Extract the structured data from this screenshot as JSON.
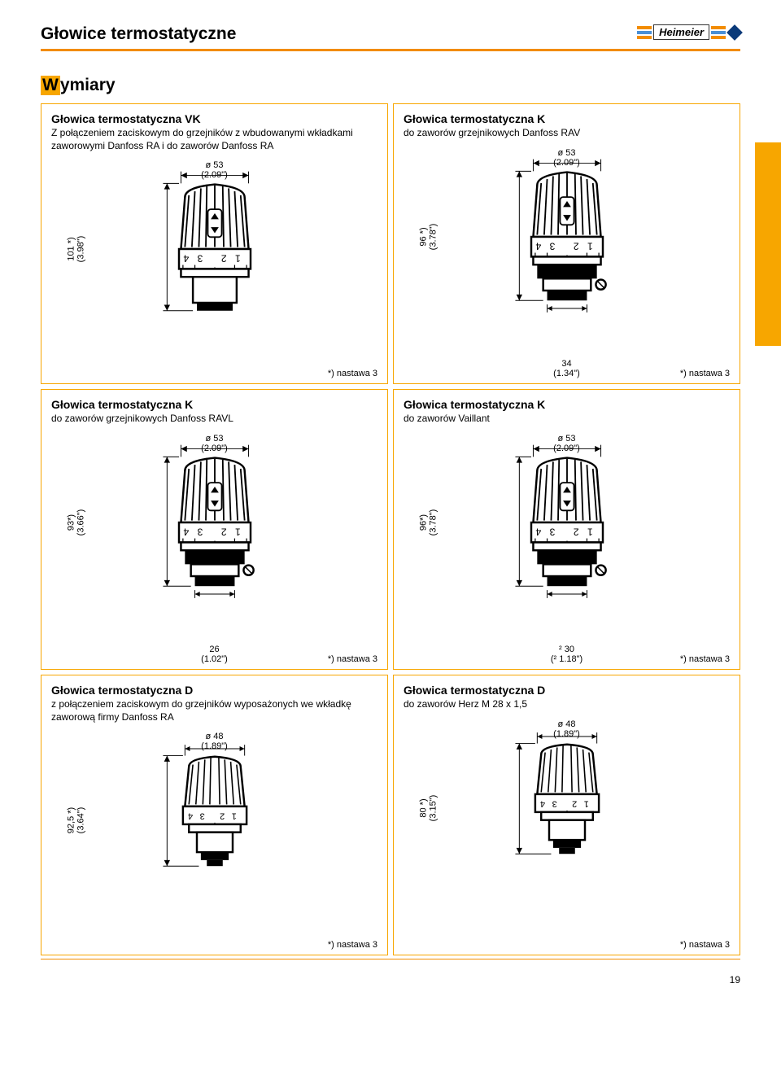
{
  "page": {
    "title": "Głowice termostatyczne",
    "section_letter": "W",
    "section_rest": "ymiary",
    "page_num": "19"
  },
  "logo": {
    "brand": "Heimeier",
    "bar_colors": [
      "#f28c00",
      "#4a8fd6",
      "#f28c00"
    ]
  },
  "note_text": "*) nastawa 3",
  "cards": [
    {
      "title": "Głowica termostatyczna VK",
      "sub": "Z połączeniem zaciskowym do grzejników z wbudowanymi wkładkami zaworowymi Danfoss RA\ni do zaworów Danfoss RA",
      "top_dim": "ø 53",
      "top_dim_in": "(2.09\")",
      "v_dim": "101 *)",
      "v_dim_in": "(3.98\")",
      "bottom_dim": "",
      "bottom_dim_in": "",
      "svg": "valve_a"
    },
    {
      "title": "Głowica termostatyczna K",
      "sub": "do zaworów grzejnikowych Danfoss RAV",
      "top_dim": "ø 53",
      "top_dim_in": "(2.09\")",
      "v_dim": "96 *)",
      "v_dim_in": "(3.78\")",
      "bottom_dim": "34",
      "bottom_dim_in": "(1.34\")",
      "svg": "valve_b"
    },
    {
      "title": "Głowica termostatyczna K",
      "sub": "do zaworów grzejnikowych Danfoss RAVL",
      "top_dim": "ø 53",
      "top_dim_in": "(2.09\")",
      "v_dim": "93*)",
      "v_dim_in": "(3.66\")",
      "bottom_dim": "26",
      "bottom_dim_in": "(1.02\")",
      "svg": "valve_b"
    },
    {
      "title": "Głowica termostatyczna K",
      "sub": "do zaworów Vaillant",
      "top_dim": "ø 53",
      "top_dim_in": "(2.09\")",
      "v_dim": "96*)",
      "v_dim_in": "(3.78\")",
      "bottom_dim": "² 30",
      "bottom_dim_in": "(² 1.18\")",
      "svg": "valve_b"
    },
    {
      "title": "Głowica termostatyczna D",
      "sub": "z połączeniem zaciskowym do grzejników wyposażonych we wkładkę zaworową firmy Danfoss RA",
      "top_dim": "ø 48",
      "top_dim_in": "(1.89\")",
      "v_dim": "92,5 *)",
      "v_dim_in": "(3.64\")",
      "bottom_dim": "",
      "bottom_dim_in": "",
      "svg": "valve_c"
    },
    {
      "title": "Głowica termostatyczna D",
      "sub": "do zaworów Herz M 28 x 1,5",
      "top_dim": "ø 48",
      "top_dim_in": "(1.89\")",
      "v_dim": "80 *)",
      "v_dim_in": "(3.15\")",
      "bottom_dim": "",
      "bottom_dim_in": "",
      "svg": "valve_c"
    }
  ]
}
